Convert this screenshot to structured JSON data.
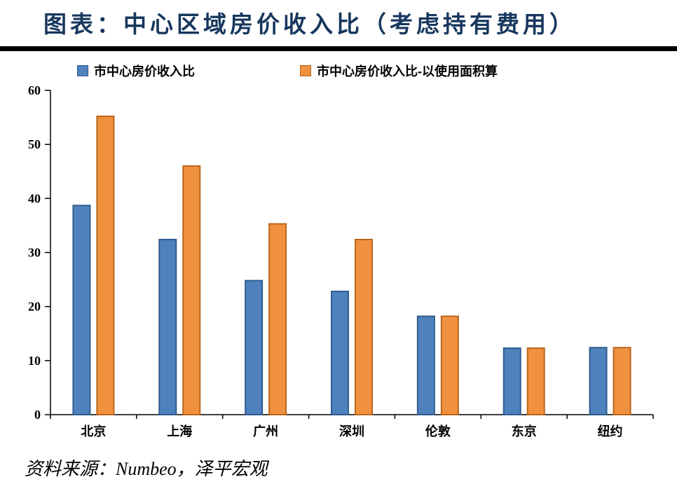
{
  "header": {
    "title": "图表：中心区域房价收入比（考虑持有费用）"
  },
  "footer": {
    "source": "资料来源：Numbeo，泽平宏观"
  },
  "chart_data": {
    "type": "bar",
    "title": "中心区域房价收入比（考虑持有费用）",
    "categories": [
      "北京",
      "上海",
      "广州",
      "深圳",
      "伦敦",
      "东京",
      "纽约"
    ],
    "series": [
      {
        "name": "市中心房价收入比",
        "color": "#4F81BD",
        "border": "#2F5C8F",
        "values": [
          38.7,
          32.4,
          24.8,
          22.8,
          18.2,
          12.3,
          12.4
        ]
      },
      {
        "name": "市中心房价收入比-以使用面积算",
        "color": "#F0913F",
        "border": "#B9651B",
        "values": [
          55.2,
          46.0,
          35.3,
          32.4,
          18.2,
          12.3,
          12.4
        ]
      }
    ],
    "xlabel": "",
    "ylabel": "",
    "ylim": [
      0,
      60
    ],
    "ytick_step": 10,
    "grid": false,
    "legend_position": "top"
  }
}
